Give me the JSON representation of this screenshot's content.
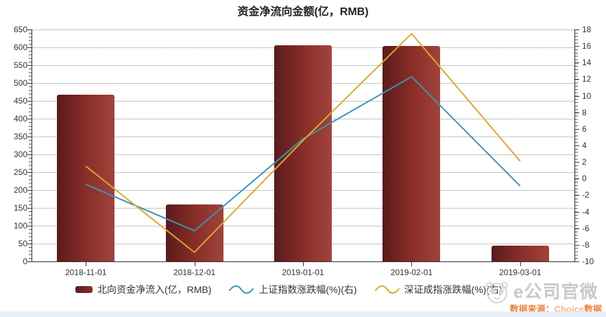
{
  "title": "资金净流向金额(亿，RMB)",
  "chart_data": {
    "type": "combo-bar-line",
    "categories": [
      "2018-11-01",
      "2018-12-01",
      "2019-01-01",
      "2019-02-01",
      "2019-03-01"
    ],
    "series": [
      {
        "name": "北向资金净流入(亿，RMB)",
        "type": "bar",
        "axis": "left",
        "color": "#8c2f29",
        "color_dark": "#5a1b1c",
        "color_light": "#a0443c",
        "values": [
          467,
          160,
          606,
          603,
          45
        ]
      },
      {
        "name": "上证指数涨跌幅(%)(右)",
        "type": "line",
        "axis": "right",
        "color": "#3f93b1",
        "values": [
          -0.7,
          -6.3,
          4.8,
          12.3,
          -0.9
        ]
      },
      {
        "name": "深证成指涨跌幅(%)(右)",
        "type": "line",
        "axis": "right",
        "color": "#d9a930",
        "values": [
          1.5,
          -8.9,
          4.6,
          17.5,
          2.1
        ]
      }
    ],
    "left_axis": {
      "min": 0,
      "max": 650,
      "step": 50
    },
    "right_axis": {
      "min": -10,
      "max": 18,
      "step": 2
    },
    "grid": {
      "style": "horizontal-dotted",
      "color": "#8c8c8c"
    },
    "legend_position": "bottom"
  },
  "watermark": {
    "brand": "e公司官微",
    "logo_icon": "panda-badge-icon"
  },
  "source": {
    "prefix": "数据来源：",
    "brand": "Choice",
    "suffix": "数据"
  }
}
